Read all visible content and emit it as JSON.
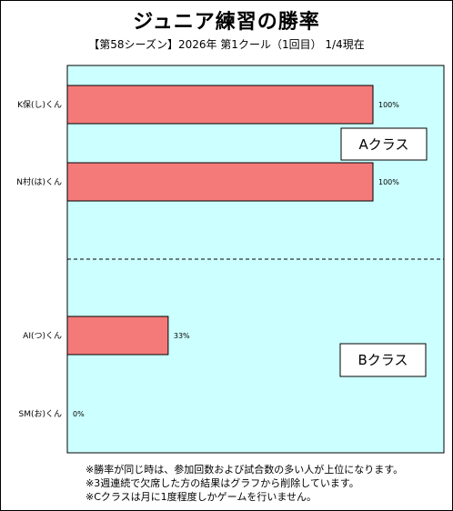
{
  "chart_data": {
    "type": "bar",
    "orientation": "horizontal",
    "title": "ジュニア練習の勝率",
    "subtitle": "【第58シーズン】2026年 第1クール（1回目） 1/4現在",
    "categories": [
      "K保(し)くん",
      "N村(は)くん",
      "AI(つ)くん",
      "SM(お)くん"
    ],
    "values": [
      100,
      100,
      33,
      0
    ],
    "value_labels": [
      "100%",
      "100%",
      "33%",
      "0%"
    ],
    "xlim": [
      0,
      100
    ],
    "grid": false,
    "groups": [
      {
        "label": "Aクラス",
        "members": [
          0,
          1
        ]
      },
      {
        "label": "Bクラス",
        "members": [
          2,
          3
        ]
      }
    ],
    "colors": {
      "bar": "#f47a7a",
      "bar_stroke": "#000000",
      "plot_bg": "#ccffff",
      "divider": "#000000"
    }
  },
  "notes": [
    "※勝率が同じ時は、参加回数および試合数の多い人が上位になります。",
    "※3週連続で欠席した方の結果はグラフから削除しています。",
    "※Cクラスは月に1度程度しかゲームを行いません。"
  ]
}
